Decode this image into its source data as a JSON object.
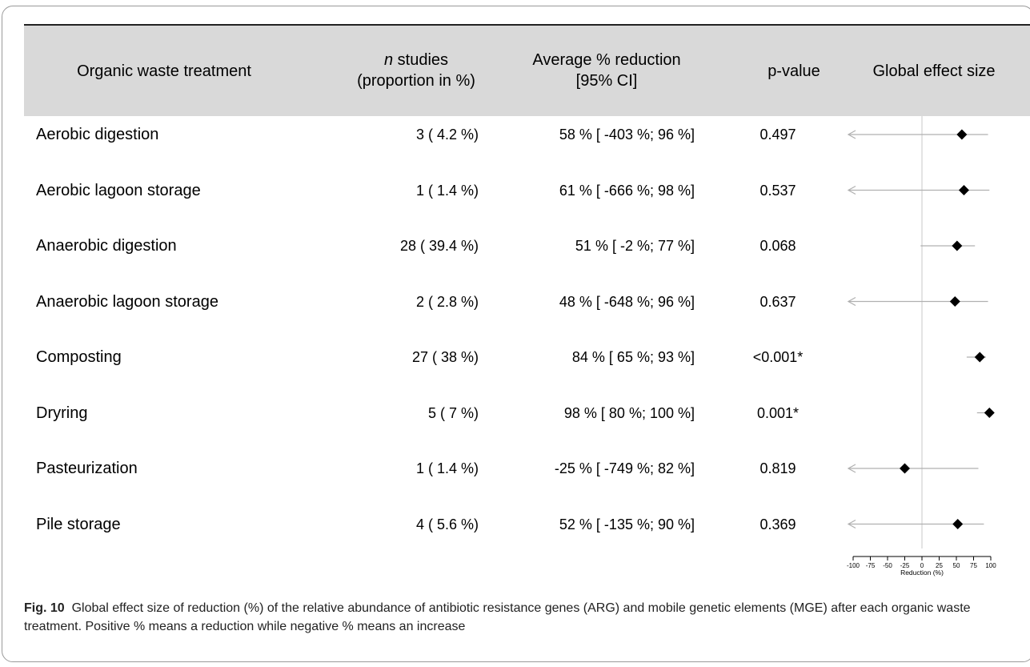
{
  "table": {
    "headers": {
      "treatment": "Organic waste treatment",
      "n_italic": "n",
      "n_rest": " studies",
      "n_line2": "(proportion in %)",
      "avg_line1": "Average % reduction",
      "avg_line2": "[95% CI]",
      "pvalue": "p-value",
      "effect": "Global effect size"
    },
    "rows": [
      {
        "treatment": "Aerobic digestion",
        "n": "3 ( 4.2 %)",
        "avg": "58 % [ -403 %; 96 %]",
        "p": "0.497"
      },
      {
        "treatment": "Aerobic lagoon storage",
        "n": "1 ( 1.4 %)",
        "avg": "61 % [ -666 %; 98 %]",
        "p": "0.537"
      },
      {
        "treatment": "Anaerobic digestion",
        "n": "28 ( 39.4 %)",
        "avg": "51 % [ -2 %; 77 %]",
        "p": "0.068"
      },
      {
        "treatment": "Anaerobic lagoon storage",
        "n": "2 ( 2.8 %)",
        "avg": "48 % [ -648 %; 96 %]",
        "p": "0.637"
      },
      {
        "treatment": "Composting",
        "n": "27 ( 38 %)",
        "avg": "84 % [ 65 %; 93 %]",
        "p": "<0.001*"
      },
      {
        "treatment": "Dryring",
        "n": "5 ( 7 %)",
        "avg": "98 % [ 80 %; 100 %]",
        "p": "0.001*"
      },
      {
        "treatment": "Pasteurization",
        "n": "1 ( 1.4 %)",
        "avg": "-25 % [ -749 %; 82 %]",
        "p": "0.819"
      },
      {
        "treatment": "Pile storage",
        "n": "4 ( 5.6 %)",
        "avg": "52 % [ -135 %; 90 %]",
        "p": "0.369"
      }
    ]
  },
  "chart_data": {
    "type": "scatter",
    "xlabel": "Reduction (%)",
    "xlim": [
      -100,
      100
    ],
    "ticks": [
      "-100",
      "-75",
      "-50",
      "-25",
      "0",
      "25",
      "50",
      "75",
      "100"
    ],
    "points": [
      {
        "label": "Aerobic digestion",
        "estimate": 58,
        "lower": -403,
        "upper": 96
      },
      {
        "label": "Aerobic lagoon storage",
        "estimate": 61,
        "lower": -666,
        "upper": 98
      },
      {
        "label": "Anaerobic digestion",
        "estimate": 51,
        "lower": -2,
        "upper": 77
      },
      {
        "label": "Anaerobic lagoon storage",
        "estimate": 48,
        "lower": -648,
        "upper": 96
      },
      {
        "label": "Composting",
        "estimate": 84,
        "lower": 65,
        "upper": 93
      },
      {
        "label": "Dryring",
        "estimate": 98,
        "lower": 80,
        "upper": 100
      },
      {
        "label": "Pasteurization",
        "estimate": -25,
        "lower": -749,
        "upper": 82
      },
      {
        "label": "Pile storage",
        "estimate": 52,
        "lower": -135,
        "upper": 90
      }
    ],
    "colors": {
      "marker": "#000000",
      "ci_line": "#b0b0b0",
      "zero_line": "#c8c8c8"
    }
  },
  "caption": {
    "label": "Fig. 10",
    "text": "Global effect size of reduction (%) of the relative abundance of antibiotic resistance genes (ARG) and mobile genetic elements (MGE) after each organic waste treatment. Positive % means a reduction while negative % means an increase"
  }
}
